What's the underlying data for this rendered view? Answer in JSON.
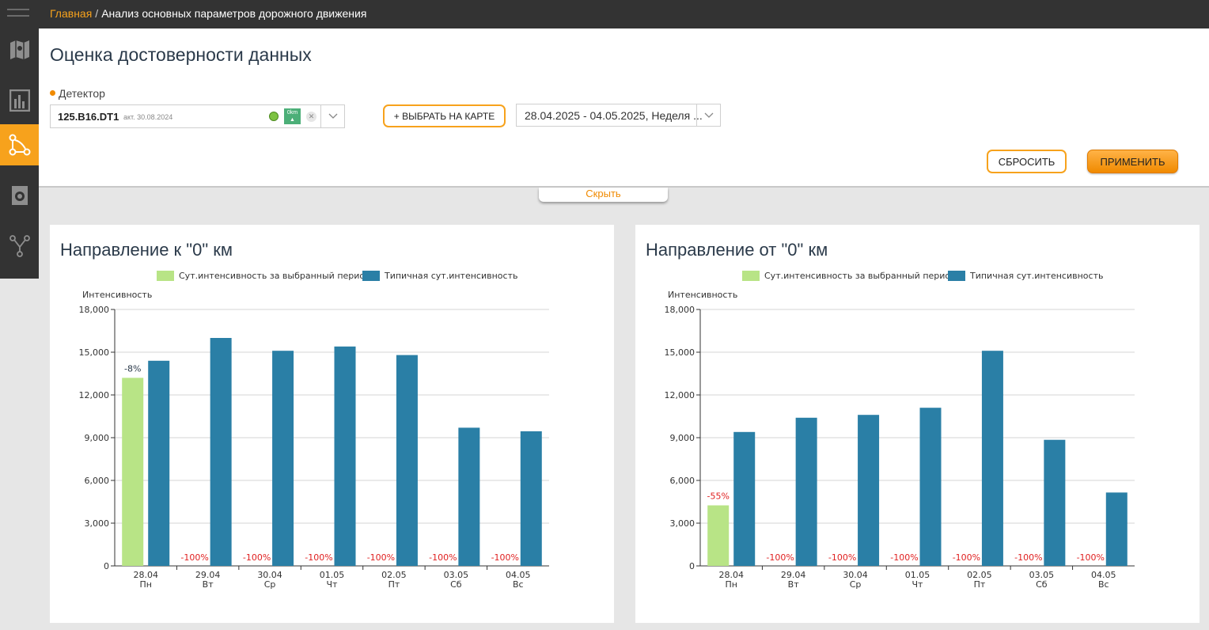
{
  "breadcrumb": {
    "home": "Главная",
    "separator": "/",
    "current": "Анализ основных параметров дорожного движения"
  },
  "sidebar": {
    "items": [
      {
        "icon": "map-icon"
      },
      {
        "icon": "bar-chart-icon"
      },
      {
        "icon": "route-icon",
        "active": true
      },
      {
        "icon": "camera-icon"
      },
      {
        "icon": "network-icon"
      }
    ]
  },
  "page": {
    "title": "Оценка достоверности данных"
  },
  "filters": {
    "detector_label": "Детектор",
    "detector_code": "125.B16.DT1",
    "detector_sub": "акт. 30.08.2024",
    "detector_km": "0km",
    "map_button": "+ ВЫБРАТЬ НА КАРТЕ",
    "date_range": "28.04.2025 - 04.05.2025, Неделя ...",
    "reset_button": "СБРОСИТЬ",
    "apply_button": "ПРИМЕНИТЬ",
    "hide_label": "Скрыть"
  },
  "colors": {
    "accent": "#f7a21c",
    "selected_series": "#b8e486",
    "typical_series": "#2a7fa6",
    "negative_pct": "#e02020"
  },
  "chart_data": [
    {
      "type": "bar",
      "title": "Направление к \"0\" км",
      "ylabel": "Интенсивность",
      "ylim": [
        0,
        18000
      ],
      "yticks": [
        0,
        3000,
        6000,
        9000,
        12000,
        15000,
        18000
      ],
      "ytick_labels": [
        "0",
        "3,000",
        "6,000",
        "9,000",
        "12,000",
        "15,000",
        "18,000"
      ],
      "categories": [
        "28.04",
        "29.04",
        "30.04",
        "01.05",
        "02.05",
        "03.05",
        "04.05"
      ],
      "weekdays": [
        "Пн",
        "Вт",
        "Ср",
        "Чт",
        "Пт",
        "Сб",
        "Вс"
      ],
      "series": [
        {
          "name": "Сут.интенсивность за выбранный период",
          "values": [
            13200,
            0,
            0,
            0,
            0,
            0,
            0
          ]
        },
        {
          "name": "Типичная сут.интенсивность",
          "values": [
            14400,
            16000,
            15100,
            15400,
            14800,
            9700,
            9450
          ]
        }
      ],
      "labels": [
        "-8%",
        "-100%",
        "-100%",
        "-100%",
        "-100%",
        "-100%",
        "-100%"
      ],
      "grid": true,
      "legend": "top"
    },
    {
      "type": "bar",
      "title": "Направление от \"0\" км",
      "ylabel": "Интенсивность",
      "ylim": [
        0,
        18000
      ],
      "yticks": [
        0,
        3000,
        6000,
        9000,
        12000,
        15000,
        18000
      ],
      "ytick_labels": [
        "0",
        "3,000",
        "6,000",
        "9,000",
        "12,000",
        "15,000",
        "18,000"
      ],
      "categories": [
        "28.04",
        "29.04",
        "30.04",
        "01.05",
        "02.05",
        "03.05",
        "04.05"
      ],
      "weekdays": [
        "Пн",
        "Вт",
        "Ср",
        "Чт",
        "Пт",
        "Сб",
        "Вс"
      ],
      "series": [
        {
          "name": "Сут.интенсивность за выбранный период",
          "values": [
            4250,
            0,
            0,
            0,
            0,
            0,
            0
          ]
        },
        {
          "name": "Типичная сут.интенсивность",
          "values": [
            9400,
            10400,
            10600,
            11100,
            15100,
            8850,
            5150
          ]
        }
      ],
      "labels": [
        "-55%",
        "-100%",
        "-100%",
        "-100%",
        "-100%",
        "-100%",
        "-100%"
      ],
      "grid": true,
      "legend": "top"
    }
  ]
}
